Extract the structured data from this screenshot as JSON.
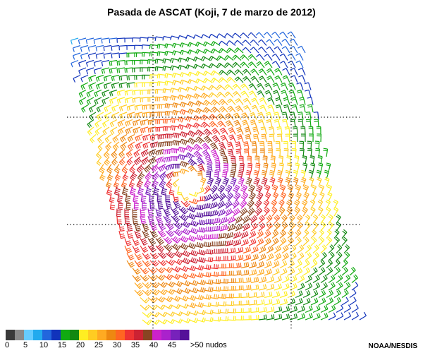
{
  "title": "Pasada de ASCAT (Koji, 7 de marzo de 2012)",
  "legend": {
    "colors": [
      "#3a3a3a",
      "#8a8a8a",
      "#66ccff",
      "#22aaee",
      "#2266dd",
      "#1133bb",
      "#11aa11",
      "#118811",
      "#ffee22",
      "#ffcc22",
      "#ffaa22",
      "#ee8811",
      "#ff6622",
      "#ee3333",
      "#cc2233",
      "#884422",
      "#cc22cc",
      "#aa22cc",
      "#7722bb",
      "#551199"
    ],
    "labels": [
      "0",
      "5",
      "10",
      "15",
      "20",
      "25",
      "30",
      "35",
      "40",
      "45",
      ">50 nudos"
    ]
  },
  "credit": "NOAA/NESDIS"
}
